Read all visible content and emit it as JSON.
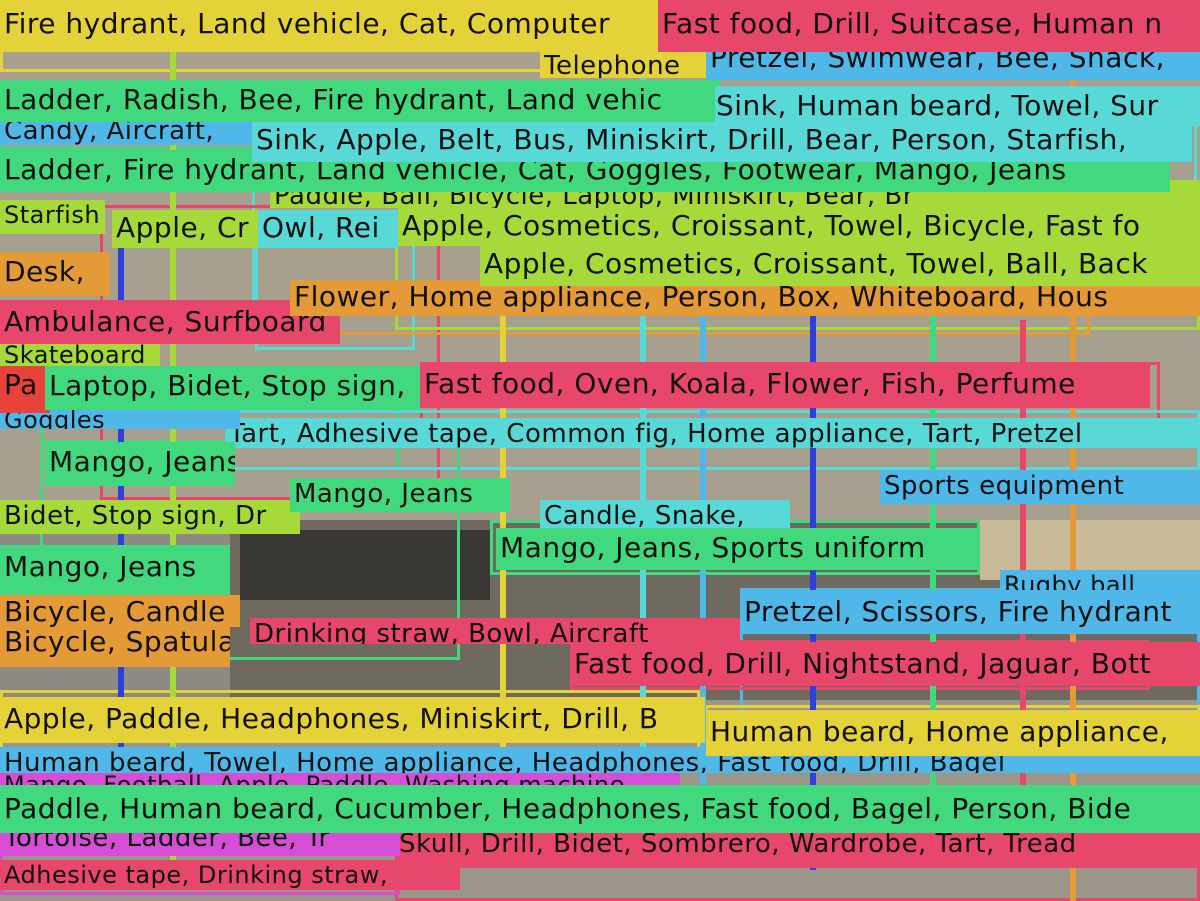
{
  "palette": {
    "yellow": "#e5d238",
    "pink": "#e6476b",
    "cyan": "#58d8d6",
    "green": "#42d87d",
    "blue": "#4fb8e8",
    "lime": "#a6d93a",
    "orange": "#e59a38",
    "violet": "#d64dd6",
    "navy": "#2f3fd9",
    "red": "#e8433a"
  },
  "labels": [
    {
      "id": "fire-hydrant-land-vehicle",
      "text": "Fire hydrant, Land vehicle, Cat, Computer",
      "color": "yellow"
    },
    {
      "id": "fast-food-drill-suitcase",
      "text": "Fast food, Drill, Suitcase, Human n",
      "color": "pink"
    },
    {
      "id": "telephone",
      "text": "Telephone",
      "color": "yellow"
    },
    {
      "id": "pretzel-swimwear",
      "text": "Pretzel, Swimwear, Bee, Snack,",
      "color": "blue"
    },
    {
      "id": "ladder-radish",
      "text": "Ladder, Radish, Bee, Fire hydrant, Land vehic",
      "color": "green"
    },
    {
      "id": "sink-human-beard",
      "text": "Sink, Human beard, Towel, Sur",
      "color": "cyan"
    },
    {
      "id": "candy-aircraft",
      "text": "Candy, Aircraft,",
      "color": "blue"
    },
    {
      "id": "sink-apple-belt",
      "text": "Sink, Apple, Belt, Bus, Miniskirt, Drill, Bear, Person, Starfish,",
      "color": "cyan"
    },
    {
      "id": "ladder-fire-hydrant",
      "text": "Ladder, Fire hydrant, Land vehicle, Cat, Goggles, Footwear, Mango, Jeans",
      "color": "green"
    },
    {
      "id": "paddle-ball-bicycle",
      "text": "Paddle, Ball, Bicycle, Laptop, Miniskirt, Bear, Br",
      "color": "lime"
    },
    {
      "id": "starfish",
      "text": "Starfish",
      "color": "lime"
    },
    {
      "id": "apple-cr",
      "text": "Apple, Cr",
      "color": "lime"
    },
    {
      "id": "owl-rei",
      "text": "Owl, Rei",
      "color": "cyan"
    },
    {
      "id": "apple-cosmetics-croissant",
      "text": "Apple, Cosmetics, Croissant, Towel, Bicycle, Fast fo",
      "color": "lime"
    },
    {
      "id": "desk",
      "text": "Desk,",
      "color": "orange"
    },
    {
      "id": "apple-cosmetics-ball",
      "text": "Apple, Cosmetics, Croissant, Towel, Ball, Back",
      "color": "lime"
    },
    {
      "id": "flower-home-appliance",
      "text": "Flower, Home appliance, Person, Box, Whiteboard, Hous",
      "color": "orange"
    },
    {
      "id": "ambulance-surfboard",
      "text": "Ambulance, Surfboard",
      "color": "pink"
    },
    {
      "id": "skateboard",
      "text": "Skateboard",
      "color": "lime"
    },
    {
      "id": "pa",
      "text": "Pa",
      "color": "red"
    },
    {
      "id": "laptop-bidet-stop-sign",
      "text": "Laptop, Bidet, Stop sign,",
      "color": "green"
    },
    {
      "id": "fast-food-oven-koala",
      "text": "Fast food, Oven, Koala, Flower, Fish, Perfume",
      "color": "pink"
    },
    {
      "id": "goggles",
      "text": "Goggles",
      "color": "blue"
    },
    {
      "id": "tart-adhesive-tape",
      "text": "Tart, Adhesive tape, Common fig, Home appliance, Tart, Pretzel",
      "color": "cyan"
    },
    {
      "id": "mango-jeans-1",
      "text": "Mango, Jeans",
      "color": "green"
    },
    {
      "id": "mango-jeans-2",
      "text": "Mango, Jeans",
      "color": "green"
    },
    {
      "id": "sports-equipment",
      "text": "Sports equipment",
      "color": "blue"
    },
    {
      "id": "bidet-stop-sign",
      "text": "Bidet, Stop sign, Dr",
      "color": "lime"
    },
    {
      "id": "candle-snake",
      "text": "Candle, Snake,",
      "color": "cyan"
    },
    {
      "id": "mango-jeans-3",
      "text": "Mango, Jeans",
      "color": "green"
    },
    {
      "id": "mango-jeans-sports-uniform",
      "text": "Mango, Jeans, Sports uniform",
      "color": "green"
    },
    {
      "id": "rugby-ball",
      "text": "Rugby ball",
      "color": "blue"
    },
    {
      "id": "bicycle-candle",
      "text": "Bicycle, Candle",
      "color": "orange"
    },
    {
      "id": "pretzel-scissors",
      "text": "Pretzel, Scissors, Fire hydrant",
      "color": "blue"
    },
    {
      "id": "drinking-straw",
      "text": "Drinking straw, Bowl, Aircraft",
      "color": "pink"
    },
    {
      "id": "bicycle-spatula",
      "text": "Bicycle, Spatula",
      "color": "orange"
    },
    {
      "id": "fast-food-drill-nightstand",
      "text": "Fast food, Drill, Nightstand, Jaguar, Bott",
      "color": "pink"
    },
    {
      "id": "apple-paddle-headphones",
      "text": "Apple, Paddle, Headphones, Miniskirt, Drill, B",
      "color": "yellow"
    },
    {
      "id": "human-beard-home-appliance",
      "text": "Human beard, Home appliance,",
      "color": "yellow"
    },
    {
      "id": "human-beard-towel",
      "text": "Human beard, Towel, Home appliance, Headphones, Fast food, Drill, Bagel",
      "color": "blue"
    },
    {
      "id": "mango-football",
      "text": "Mango, Football, Apple, Paddle, Washing machine",
      "color": "violet"
    },
    {
      "id": "paddle-human-beard-cucumber",
      "text": "Paddle, Human beard, Cucumber, Headphones, Fast food, Bagel, Person, Bide",
      "color": "green"
    },
    {
      "id": "tortoise-ladder",
      "text": "Tortoise, Ladder, Bee, Tr",
      "color": "violet"
    },
    {
      "id": "skull-drill-bidet",
      "text": "Skull, Drill, Bidet, Sombrero, Wardrobe, Tart, Tread",
      "color": "pink"
    },
    {
      "id": "adhesive-tape-bottom",
      "text": "Adhesive tape, Drinking straw,",
      "color": "pink"
    }
  ]
}
